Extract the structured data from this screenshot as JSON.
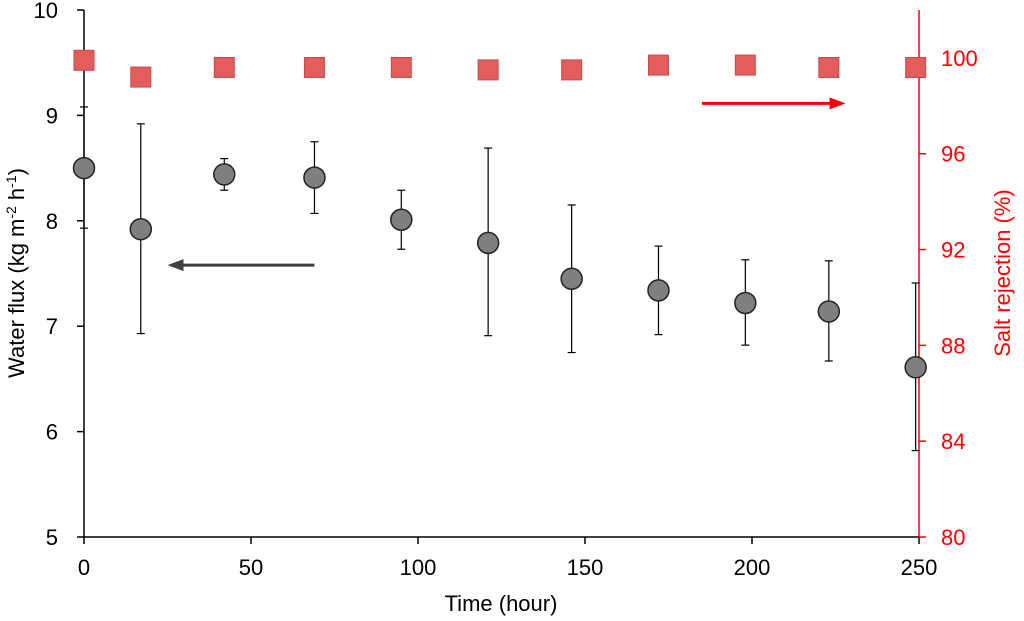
{
  "chart_data": {
    "type": "scatter",
    "x_axis": {
      "label": "Time (hour)",
      "range": [
        0,
        250
      ],
      "ticks": [
        0,
        50,
        100,
        150,
        200,
        250
      ]
    },
    "y_axis_left": {
      "label_parts": [
        "Water flux (kg m",
        "-2",
        " h",
        "-1",
        ")"
      ],
      "range": [
        5,
        10
      ],
      "ticks": [
        5,
        6,
        7,
        8,
        9,
        10
      ]
    },
    "y_axis_right": {
      "label": "Salt rejection (%)",
      "range": [
        80,
        102
      ],
      "ticks": [
        80,
        84,
        88,
        92,
        96,
        100
      ],
      "color": "#ff0000"
    },
    "series": [
      {
        "role": "water_flux",
        "axis": "left",
        "marker": "circle",
        "color": "#7f7f7f",
        "points": [
          {
            "x": 0,
            "y": 8.5,
            "err_low": 7.93,
            "err_high": 9.08
          },
          {
            "x": 17,
            "y": 7.92,
            "err_low": 6.93,
            "err_high": 8.92
          },
          {
            "x": 42,
            "y": 8.44,
            "err_low": 8.29,
            "err_high": 8.59
          },
          {
            "x": 69,
            "y": 8.41,
            "err_low": 8.07,
            "err_high": 8.75
          },
          {
            "x": 95,
            "y": 8.01,
            "err_low": 7.73,
            "err_high": 8.29
          },
          {
            "x": 121,
            "y": 7.79,
            "err_low": 6.91,
            "err_high": 8.69
          },
          {
            "x": 146,
            "y": 7.45,
            "err_low": 6.75,
            "err_high": 8.15
          },
          {
            "x": 172,
            "y": 7.34,
            "err_low": 6.92,
            "err_high": 7.76
          },
          {
            "x": 198,
            "y": 7.22,
            "err_low": 6.82,
            "err_high": 7.63
          },
          {
            "x": 223,
            "y": 7.14,
            "err_low": 6.67,
            "err_high": 7.62
          },
          {
            "x": 249,
            "y": 6.61,
            "err_low": 5.82,
            "err_high": 7.41
          }
        ]
      },
      {
        "role": "salt_rejection",
        "axis": "right",
        "marker": "square",
        "color": "#e35d5d",
        "points": [
          {
            "x": 0,
            "y": 99.9
          },
          {
            "x": 17,
            "y": 99.2
          },
          {
            "x": 42,
            "y": 99.6
          },
          {
            "x": 69,
            "y": 99.6
          },
          {
            "x": 95,
            "y": 99.6
          },
          {
            "x": 121,
            "y": 99.5
          },
          {
            "x": 146,
            "y": 99.5
          },
          {
            "x": 172,
            "y": 99.7
          },
          {
            "x": 198,
            "y": 99.7
          },
          {
            "x": 223,
            "y": 99.6
          },
          {
            "x": 249,
            "y": 99.6
          }
        ]
      }
    ],
    "annotations": [
      {
        "type": "arrow",
        "direction": "left",
        "points_to": "left axis",
        "color": "#404040",
        "x_from": 69,
        "x_to": 25,
        "axis": "left",
        "y": 7.58
      },
      {
        "type": "arrow",
        "direction": "right",
        "points_to": "right axis",
        "color": "#ff0000",
        "x_from": 185,
        "x_to": 228,
        "axis": "right",
        "y": 98.1
      }
    ],
    "grid": false,
    "legend": "none"
  }
}
